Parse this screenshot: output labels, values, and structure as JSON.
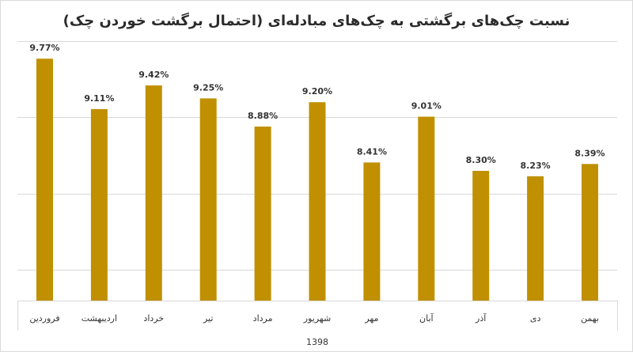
{
  "chart_data": {
    "type": "bar",
    "title": "نسبت چک‌های برگشتی به چک‌های مبادله‌ای (احتمال برگشت خوردن چک)",
    "group_label": "1398",
    "categories": [
      "فروردین",
      "اردیبهشت",
      "خرداد",
      "تیر",
      "مرداد",
      "شهریور",
      "مهر",
      "آبان",
      "آذر",
      "دی",
      "بهمن"
    ],
    "values": [
      9.77,
      9.11,
      9.42,
      9.25,
      8.88,
      9.2,
      8.41,
      9.01,
      8.3,
      8.23,
      8.39
    ],
    "data_labels": [
      "9.77%",
      "9.11%",
      "9.42%",
      "9.25%",
      "8.88%",
      "9.20%",
      "8.41%",
      "9.01%",
      "8.30%",
      "8.23%",
      "8.39%"
    ],
    "ylim": [
      6.6,
      10.0
    ],
    "grid": true,
    "legend": "none",
    "xlabel": "",
    "ylabel": "",
    "colors": {
      "bar": "#c09000",
      "grid": "#d9d9d9",
      "text": "#333333"
    }
  }
}
